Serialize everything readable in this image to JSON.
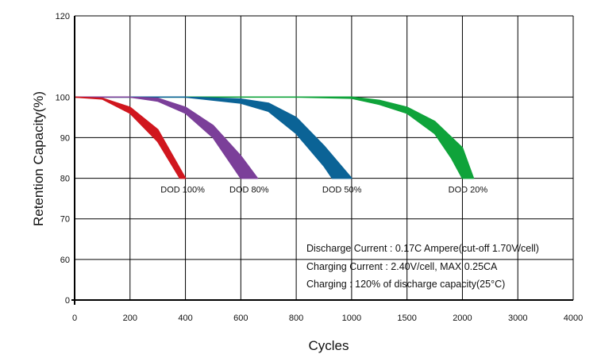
{
  "chart_data": {
    "type": "area",
    "xlabel": "Cycles",
    "ylabel": "Retention Capacity(%)",
    "x_ticks": [
      "0",
      "200",
      "400",
      "600",
      "800",
      "1000",
      "1500",
      "2000",
      "3000",
      "4000"
    ],
    "y_ticks": [
      0,
      60,
      70,
      80,
      90,
      100,
      120
    ],
    "ylim": [
      0,
      120
    ],
    "grid": true,
    "series": [
      {
        "name": "DOD 100%",
        "color": "#d0161e",
        "points": [
          [
            0,
            100
          ],
          [
            100,
            99.5
          ],
          [
            200,
            96
          ],
          [
            300,
            89
          ],
          [
            380,
            80
          ]
        ],
        "upper": [
          [
            0,
            100
          ],
          [
            100,
            99.7
          ],
          [
            200,
            97.5
          ],
          [
            300,
            92
          ],
          [
            400,
            80
          ]
        ]
      },
      {
        "name": "DOD 80%",
        "color": "#7b3f99",
        "points": [
          [
            0,
            100
          ],
          [
            200,
            100
          ],
          [
            300,
            99
          ],
          [
            400,
            96
          ],
          [
            500,
            90
          ],
          [
            600,
            80
          ]
        ],
        "upper": [
          [
            0,
            100
          ],
          [
            200,
            100
          ],
          [
            300,
            99.7
          ],
          [
            400,
            97.5
          ],
          [
            500,
            93
          ],
          [
            600,
            85.5
          ],
          [
            660,
            80
          ]
        ]
      },
      {
        "name": "DOD 50%",
        "color": "#0b6396",
        "points": [
          [
            0,
            100
          ],
          [
            400,
            100
          ],
          [
            600,
            98.5
          ],
          [
            700,
            96.5
          ],
          [
            800,
            91
          ],
          [
            900,
            83
          ],
          [
            930,
            80
          ]
        ],
        "upper": [
          [
            0,
            100
          ],
          [
            400,
            100
          ],
          [
            600,
            99.5
          ],
          [
            700,
            98.5
          ],
          [
            800,
            95
          ],
          [
            900,
            88
          ],
          [
            1000,
            80
          ]
        ]
      },
      {
        "name": "DOD 20%",
        "color": "#0fa33a",
        "points": [
          [
            0,
            100
          ],
          [
            800,
            100
          ],
          [
            1000,
            99.7
          ],
          [
            1250,
            98.2
          ],
          [
            1500,
            96
          ],
          [
            1750,
            91
          ],
          [
            1900,
            85
          ],
          [
            2000,
            80
          ]
        ],
        "upper": [
          [
            0,
            100
          ],
          [
            800,
            100
          ],
          [
            1000,
            100
          ],
          [
            1250,
            99.2
          ],
          [
            1500,
            97.5
          ],
          [
            1750,
            94
          ],
          [
            2000,
            87.5
          ],
          [
            2200,
            80
          ]
        ]
      }
    ],
    "annotations": [
      "Discharge Current : 0.17C Ampere(cut-off 1.70V/cell)",
      "Charging Current : 2.40V/cell, MAX 0.25CA",
      "Charging : 120% of discharge capacity(25°C)"
    ]
  }
}
